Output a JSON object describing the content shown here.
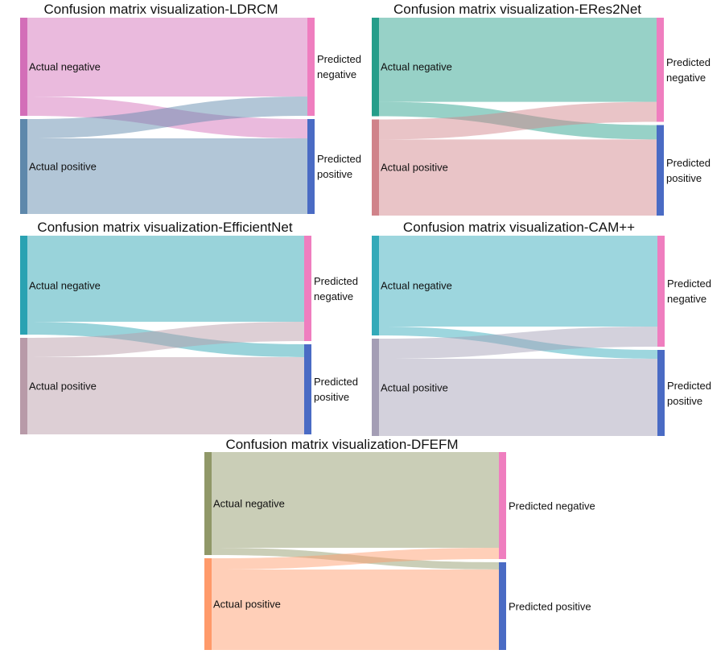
{
  "chart_data": [
    {
      "type": "sankey",
      "title": "Confusion matrix visualization-LDRCM",
      "sources": [
        "Actual negative",
        "Actual positive"
      ],
      "targets": [
        "Predicted negative",
        "Predicted positive"
      ],
      "flows": {
        "TN": 98,
        "FP": 24,
        "FN": 24,
        "TP": 94
      },
      "colors": {
        "actual_negative": "#d36eb8",
        "actual_positive": "#5e88ab",
        "predicted_negative": "#ef7ebf",
        "predicted_positive": "#4a6bc4"
      }
    },
    {
      "type": "sankey",
      "title": "Confusion matrix visualization-ERes2Net",
      "sources": [
        "Actual negative",
        "Actual positive"
      ],
      "targets": [
        "Predicted negative",
        "Predicted positive"
      ],
      "flows": {
        "TN": 105,
        "FP": 18,
        "FN": 25,
        "TP": 95
      },
      "colors": {
        "actual_negative": "#259e8a",
        "actual_positive": "#d0838a",
        "predicted_negative": "#ef7ebf",
        "predicted_positive": "#4a6bc4"
      }
    },
    {
      "type": "sankey",
      "title": "Confusion matrix visualization-EfficientNet",
      "sources": [
        "Actual negative",
        "Actual positive"
      ],
      "targets": [
        "Predicted negative",
        "Predicted positive"
      ],
      "flows": {
        "TN": 107,
        "FP": 16,
        "FN": 24,
        "TP": 96
      },
      "colors": {
        "actual_negative": "#2aa2b2",
        "actual_positive": "#b89aa8",
        "predicted_negative": "#ef7ebf",
        "predicted_positive": "#4a6bc4"
      }
    },
    {
      "type": "sankey",
      "title": "Confusion matrix visualization-CAM++",
      "sources": [
        "Actual negative",
        "Actual positive"
      ],
      "targets": [
        "Predicted negative",
        "Predicted positive"
      ],
      "flows": {
        "TN": 113,
        "FP": 11,
        "FN": 25,
        "TP": 96
      },
      "colors": {
        "actual_negative": "#33aab9",
        "actual_positive": "#a49eb5",
        "predicted_negative": "#ef7ebf",
        "predicted_positive": "#4a6bc4"
      }
    },
    {
      "type": "sankey",
      "title": "Confusion matrix visualization-DFEFM",
      "sources": [
        "Actual negative",
        "Actual positive"
      ],
      "targets": [
        "Predicted negative",
        "Predicted positive"
      ],
      "flows": {
        "TN": 119,
        "FP": 9,
        "FN": 14,
        "TP": 100
      },
      "colors": {
        "actual_negative": "#909868",
        "actual_positive": "#ff9a6a",
        "predicted_negative": "#ef7ebf",
        "predicted_positive": "#4a6bc4"
      }
    }
  ]
}
